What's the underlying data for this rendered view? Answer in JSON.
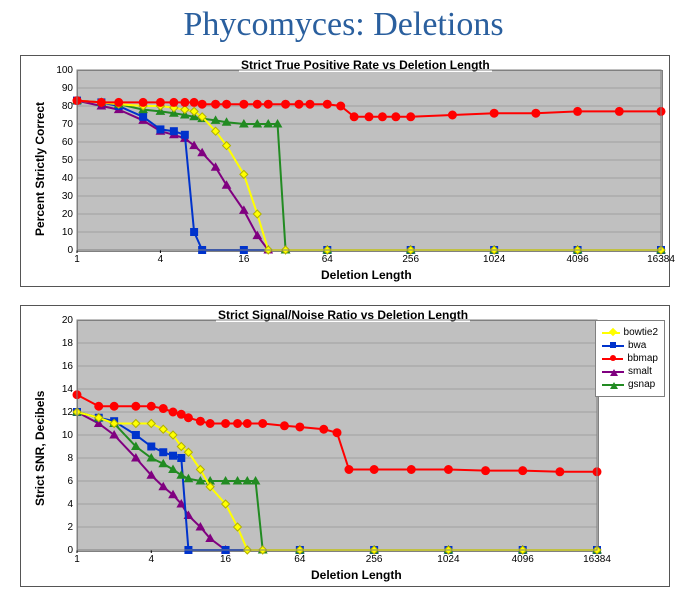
{
  "page_title": "Phycomyces: Deletions",
  "title_color": "#2a5f9e",
  "title_fontsize": 34,
  "legend": {
    "items": [
      {
        "key": "bowtie2",
        "label": "bowtie2",
        "color": "#ffff00",
        "marker": "diamond"
      },
      {
        "key": "bwa",
        "label": "bwa",
        "color": "#0033cc",
        "marker": "square"
      },
      {
        "key": "bbmap",
        "label": "bbmap",
        "color": "#ff0000",
        "marker": "circle"
      },
      {
        "key": "smalt",
        "label": "smalt",
        "color": "#800080",
        "marker": "triangle"
      },
      {
        "key": "gsnap",
        "label": "gsnap",
        "color": "#228b22",
        "marker": "triangle"
      }
    ]
  },
  "x_axis": {
    "label": "Deletion Length",
    "scale": "log2",
    "min": 1,
    "max": 16384,
    "ticks": [
      1,
      4,
      16,
      64,
      256,
      1024,
      4096,
      16384
    ]
  },
  "chart1": {
    "title": "Strict True Positive Rate vs Deletion Length",
    "ylabel": "Percent Strictly Correct",
    "ylim": [
      0,
      100
    ],
    "ytick_step": 10,
    "plot_bg": "#c0c0c0",
    "grid_color": "#808080",
    "series": {
      "bbmap": [
        [
          1,
          83
        ],
        [
          1.5,
          82
        ],
        [
          2,
          82
        ],
        [
          3,
          82
        ],
        [
          4,
          82
        ],
        [
          5,
          82
        ],
        [
          6,
          82
        ],
        [
          7,
          82
        ],
        [
          8,
          81
        ],
        [
          10,
          81
        ],
        [
          12,
          81
        ],
        [
          16,
          81
        ],
        [
          20,
          81
        ],
        [
          24,
          81
        ],
        [
          32,
          81
        ],
        [
          40,
          81
        ],
        [
          48,
          81
        ],
        [
          64,
          81
        ],
        [
          80,
          80
        ],
        [
          100,
          74
        ],
        [
          128,
          74
        ],
        [
          160,
          74
        ],
        [
          200,
          74
        ],
        [
          256,
          74
        ],
        [
          512,
          75
        ],
        [
          1024,
          76
        ],
        [
          2048,
          76
        ],
        [
          4096,
          77
        ],
        [
          8192,
          77
        ],
        [
          16384,
          77
        ]
      ],
      "bowtie2": [
        [
          1,
          83
        ],
        [
          1.5,
          82
        ],
        [
          2,
          81
        ],
        [
          3,
          80
        ],
        [
          4,
          80
        ],
        [
          5,
          79
        ],
        [
          6,
          78
        ],
        [
          7,
          77
        ],
        [
          8,
          74
        ],
        [
          10,
          66
        ],
        [
          12,
          58
        ],
        [
          16,
          42
        ],
        [
          20,
          20
        ],
        [
          24,
          0
        ],
        [
          32,
          0
        ],
        [
          64,
          0
        ],
        [
          256,
          0
        ],
        [
          1024,
          0
        ],
        [
          4096,
          0
        ],
        [
          16384,
          0
        ]
      ],
      "bwa": [
        [
          1,
          83
        ],
        [
          1.5,
          82
        ],
        [
          2,
          80
        ],
        [
          3,
          74
        ],
        [
          4,
          67
        ],
        [
          5,
          66
        ],
        [
          6,
          64
        ],
        [
          7,
          10
        ],
        [
          8,
          0
        ],
        [
          16,
          0
        ],
        [
          64,
          0
        ],
        [
          256,
          0
        ],
        [
          1024,
          0
        ],
        [
          4096,
          0
        ],
        [
          16384,
          0
        ]
      ],
      "smalt": [
        [
          1,
          83
        ],
        [
          1.5,
          80
        ],
        [
          2,
          78
        ],
        [
          3,
          72
        ],
        [
          4,
          66
        ],
        [
          5,
          64
        ],
        [
          6,
          62
        ],
        [
          7,
          58
        ],
        [
          8,
          54
        ],
        [
          10,
          46
        ],
        [
          12,
          36
        ],
        [
          16,
          22
        ],
        [
          20,
          8
        ],
        [
          24,
          0
        ],
        [
          32,
          0
        ],
        [
          64,
          0
        ],
        [
          256,
          0
        ],
        [
          1024,
          0
        ],
        [
          4096,
          0
        ],
        [
          16384,
          0
        ]
      ],
      "gsnap": [
        [
          1,
          83
        ],
        [
          1.5,
          82
        ],
        [
          2,
          81
        ],
        [
          3,
          78
        ],
        [
          4,
          77
        ],
        [
          5,
          76
        ],
        [
          6,
          75
        ],
        [
          7,
          74
        ],
        [
          8,
          73
        ],
        [
          10,
          72
        ],
        [
          12,
          71
        ],
        [
          16,
          70
        ],
        [
          20,
          70
        ],
        [
          24,
          70
        ],
        [
          28,
          70
        ],
        [
          32,
          0
        ],
        [
          64,
          0
        ],
        [
          256,
          0
        ],
        [
          1024,
          0
        ],
        [
          4096,
          0
        ],
        [
          16384,
          0
        ]
      ]
    }
  },
  "chart2": {
    "title": "Strict Signal/Noise Ratio vs Deletion Length",
    "ylabel": "Strict SNR, Decibels",
    "ylim": [
      0,
      20
    ],
    "ytick_step": 2,
    "plot_bg": "#c0c0c0",
    "grid_color": "#808080",
    "series": {
      "bbmap": [
        [
          1,
          13.5
        ],
        [
          1.5,
          12.5
        ],
        [
          2,
          12.5
        ],
        [
          3,
          12.5
        ],
        [
          4,
          12.5
        ],
        [
          5,
          12.3
        ],
        [
          6,
          12.0
        ],
        [
          7,
          11.8
        ],
        [
          8,
          11.5
        ],
        [
          10,
          11.2
        ],
        [
          12,
          11.0
        ],
        [
          16,
          11.0
        ],
        [
          20,
          11.0
        ],
        [
          24,
          11.0
        ],
        [
          32,
          11.0
        ],
        [
          48,
          10.8
        ],
        [
          64,
          10.7
        ],
        [
          100,
          10.5
        ],
        [
          128,
          10.2
        ],
        [
          160,
          7.0
        ],
        [
          256,
          7.0
        ],
        [
          512,
          7.0
        ],
        [
          1024,
          7.0
        ],
        [
          2048,
          6.9
        ],
        [
          4096,
          6.9
        ],
        [
          8192,
          6.8
        ],
        [
          16384,
          6.8
        ]
      ],
      "bowtie2": [
        [
          1,
          12
        ],
        [
          1.5,
          11.5
        ],
        [
          2,
          11
        ],
        [
          3,
          11
        ],
        [
          4,
          11
        ],
        [
          5,
          10.5
        ],
        [
          6,
          10
        ],
        [
          7,
          9
        ],
        [
          8,
          8.5
        ],
        [
          10,
          7
        ],
        [
          12,
          5.5
        ],
        [
          16,
          4
        ],
        [
          20,
          2
        ],
        [
          24,
          0
        ],
        [
          32,
          0
        ],
        [
          64,
          0
        ],
        [
          256,
          0
        ],
        [
          1024,
          0
        ],
        [
          4096,
          0
        ],
        [
          16384,
          0
        ]
      ],
      "bwa": [
        [
          1,
          12
        ],
        [
          1.5,
          11.5
        ],
        [
          2,
          11.2
        ],
        [
          3,
          10
        ],
        [
          4,
          9
        ],
        [
          5,
          8.5
        ],
        [
          6,
          8.2
        ],
        [
          7,
          8
        ],
        [
          8,
          0
        ],
        [
          16,
          0
        ],
        [
          64,
          0
        ],
        [
          256,
          0
        ],
        [
          1024,
          0
        ],
        [
          4096,
          0
        ],
        [
          16384,
          0
        ]
      ],
      "smalt": [
        [
          1,
          12
        ],
        [
          1.5,
          11
        ],
        [
          2,
          10
        ],
        [
          3,
          8
        ],
        [
          4,
          6.5
        ],
        [
          5,
          5.5
        ],
        [
          6,
          4.8
        ],
        [
          7,
          4
        ],
        [
          8,
          3
        ],
        [
          10,
          2
        ],
        [
          12,
          1
        ],
        [
          16,
          0
        ],
        [
          32,
          0
        ],
        [
          64,
          0
        ],
        [
          256,
          0
        ],
        [
          1024,
          0
        ],
        [
          4096,
          0
        ],
        [
          16384,
          0
        ]
      ],
      "gsnap": [
        [
          1,
          12
        ],
        [
          1.5,
          11.5
        ],
        [
          2,
          11
        ],
        [
          3,
          9
        ],
        [
          4,
          8
        ],
        [
          5,
          7.5
        ],
        [
          6,
          7
        ],
        [
          7,
          6.5
        ],
        [
          8,
          6.2
        ],
        [
          10,
          6
        ],
        [
          12,
          6
        ],
        [
          16,
          6
        ],
        [
          20,
          6
        ],
        [
          24,
          6
        ],
        [
          28,
          6
        ],
        [
          32,
          0
        ],
        [
          64,
          0
        ],
        [
          256,
          0
        ],
        [
          1024,
          0
        ],
        [
          4096,
          0
        ],
        [
          16384,
          0
        ]
      ]
    }
  }
}
